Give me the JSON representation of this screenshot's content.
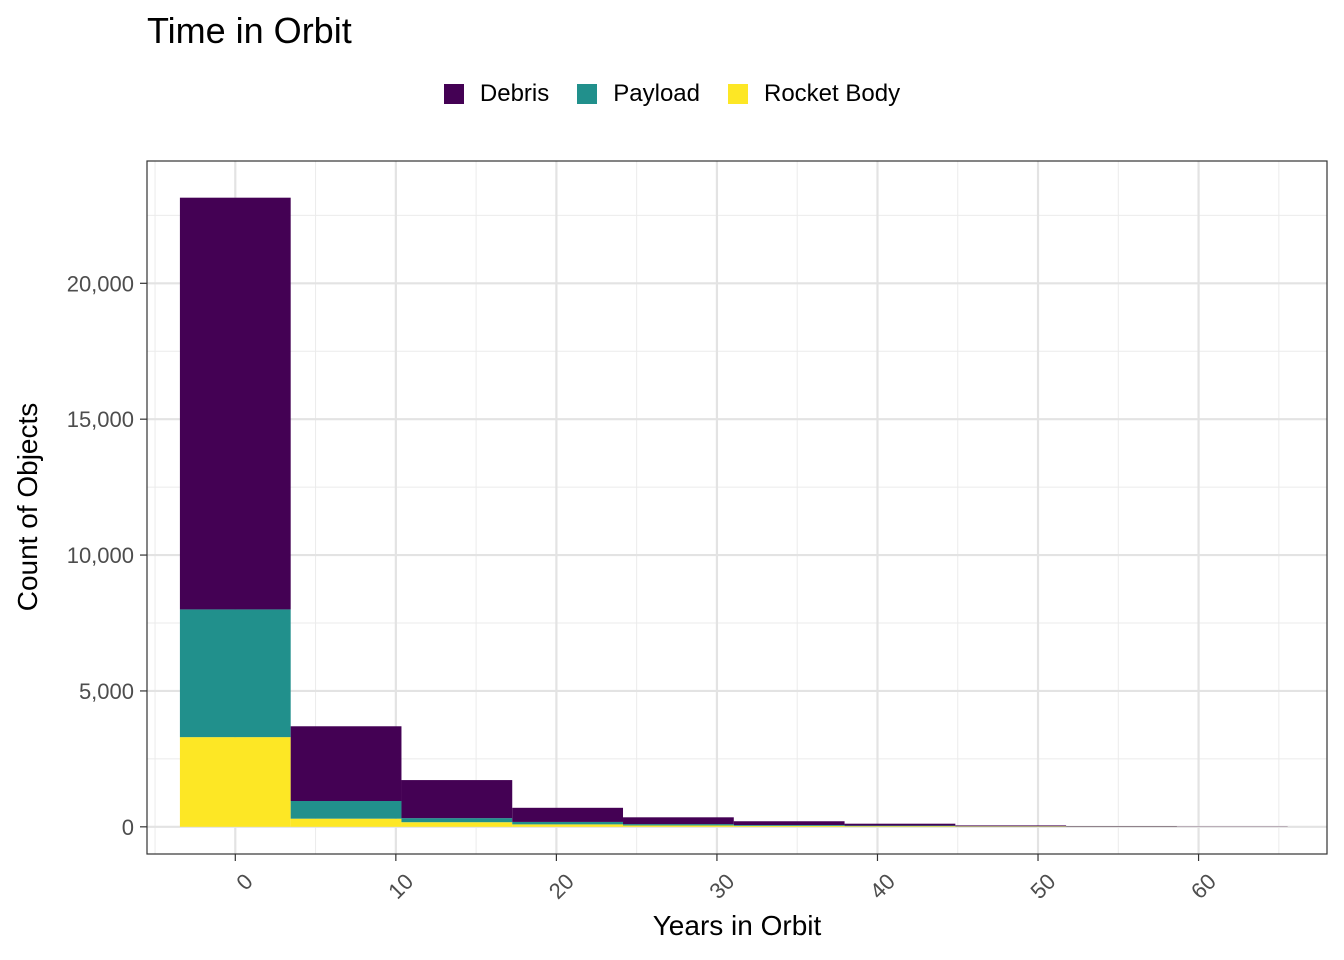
{
  "chart_data": {
    "type": "bar",
    "stacked": true,
    "histogram": true,
    "title": "Time in Orbit",
    "xlabel": "Years in Orbit",
    "ylabel": "Count of Objects",
    "bin_width": 6.9,
    "bins": [
      [
        -3.45,
        3.45
      ],
      [
        3.45,
        10.35
      ],
      [
        10.35,
        17.25
      ],
      [
        17.25,
        24.15
      ],
      [
        24.15,
        31.05
      ],
      [
        31.05,
        37.95
      ],
      [
        37.95,
        44.85
      ],
      [
        44.85,
        51.75
      ],
      [
        51.75,
        58.65
      ],
      [
        58.65,
        65.55
      ]
    ],
    "series": [
      {
        "name": "Rocket Body",
        "color": "#FDE725",
        "values": [
          3300,
          300,
          170,
          90,
          50,
          35,
          25,
          12,
          6,
          3
        ]
      },
      {
        "name": "Payload",
        "color": "#21908C",
        "values": [
          4700,
          650,
          150,
          90,
          50,
          30,
          20,
          10,
          5,
          2
        ]
      },
      {
        "name": "Debris",
        "color": "#440154",
        "values": [
          15150,
          2750,
          1400,
          520,
          250,
          140,
          70,
          30,
          14,
          8
        ]
      }
    ],
    "legend_order": [
      "Debris",
      "Payload",
      "Rocket Body"
    ],
    "legend_position": "top",
    "xlim": [
      -5.5,
      68
    ],
    "ylim": [
      -1000,
      24500
    ],
    "xticks": [
      0,
      10,
      20,
      30,
      40,
      50,
      60
    ],
    "xtick_labels": [
      "0",
      "10",
      "20",
      "30",
      "40",
      "50",
      "60"
    ],
    "yticks": [
      0,
      5000,
      10000,
      15000,
      20000
    ],
    "ytick_labels": [
      "0",
      "5,000",
      "10,000",
      "15,000",
      "20,000"
    ],
    "grid": true
  }
}
